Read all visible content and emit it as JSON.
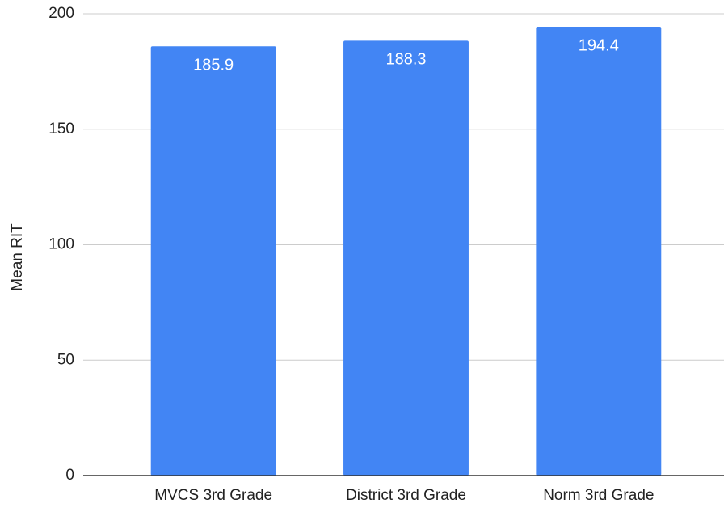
{
  "chart_data": {
    "type": "bar",
    "ylabel": "Mean RIT",
    "categories": [
      "MVCS 3rd Grade",
      "District 3rd Grade",
      "Norm 3rd Grade"
    ],
    "values": [
      185.9,
      188.3,
      194.4
    ],
    "color": "#4285f4",
    "ylim": [
      0,
      200
    ],
    "yticks": [
      0,
      50,
      100,
      150,
      200
    ],
    "grid": true,
    "data_labels": true
  }
}
